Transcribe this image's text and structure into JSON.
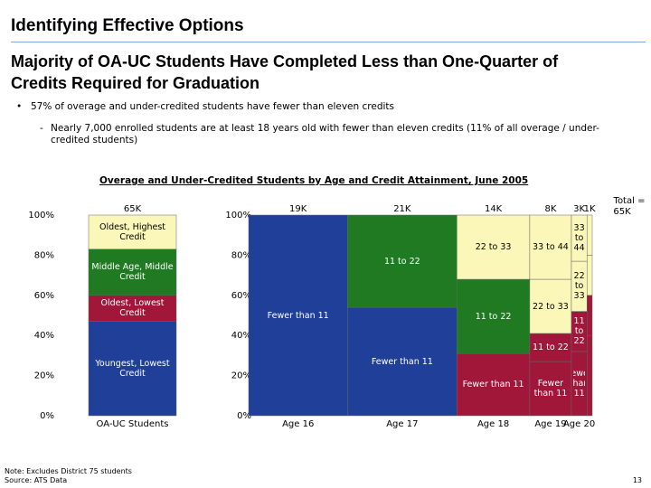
{
  "header": {
    "title": "Identifying Effective Options"
  },
  "heading": "Majority of OA-UC Students Have Completed Less than One-Quarter of Credits Required for Graduation",
  "bullets": [
    {
      "text": "57% of overage and under-credited students have fewer than eleven credits",
      "subs": [
        "Nearly 7,000 enrolled students are at least 18 years old with fewer than eleven credits (11% of all overage / under-credited students)"
      ]
    }
  ],
  "figure_title": "Overage and Under-Credited Students by Age and Credit Attainment, June 2005",
  "chart_data": [
    {
      "type": "stacked-bar",
      "categories": [
        "OA-UC Students"
      ],
      "widths": [
        65
      ],
      "width_labels": [
        "65K"
      ],
      "series": [
        {
          "name": "Youngest, Lowest Credit",
          "color": "#1f3f99",
          "values": [
            47
          ]
        },
        {
          "name": "Oldest, Lowest Credit",
          "color": "#a0173a",
          "values": [
            13
          ]
        },
        {
          "name": "Middle Age, Middle Credit",
          "color": "#1f7a22",
          "values": [
            23
          ]
        },
        {
          "name": "Oldest, Highest Credit",
          "color": "#fbf7b8",
          "values": [
            17
          ]
        }
      ],
      "ylim": [
        0,
        100
      ],
      "yticks": [
        {
          "value": 0,
          "label": "0%"
        },
        {
          "value": 20,
          "label": "20%"
        },
        {
          "value": 40,
          "label": "40%"
        },
        {
          "value": 60,
          "label": "60%"
        },
        {
          "value": 80,
          "label": "80%"
        },
        {
          "value": 100,
          "label": "100%"
        }
      ]
    },
    {
      "type": "mekko",
      "categories": [
        "Age 16",
        "Age 17",
        "Age 18",
        "Age 19",
        "Age 20",
        null
      ],
      "widths": [
        19,
        21,
        14,
        8,
        3,
        1
      ],
      "width_labels": [
        "19K",
        "21K",
        "14K",
        "8K",
        "3K",
        "1K"
      ],
      "total_prefix": "Total =",
      "total": 65,
      "total_label": "65K",
      "series": [
        {
          "name": "Fewer than 11",
          "colors": [
            "#1f3f99",
            "#1f3f99",
            "#a0173a",
            "#a0173a",
            "#a0173a",
            "#a0173a"
          ],
          "values": [
            100,
            54,
            31,
            27,
            32,
            40
          ]
        },
        {
          "name": "11 to 22",
          "colors": [
            "#1f7a22",
            "#1f7a22",
            "#1f7a22",
            "#a0173a",
            "#a0173a",
            "#a0173a"
          ],
          "values": [
            0,
            46,
            37,
            14,
            20,
            20
          ]
        },
        {
          "name": "22 to 33",
          "colors": [
            "#fbf7b8",
            "#fbf7b8",
            "#fbf7b8",
            "#fbf7b8",
            "#fbf7b8",
            "#fbf7b8"
          ],
          "values": [
            0,
            0,
            32,
            27,
            25,
            20
          ]
        },
        {
          "name": "33 to 44",
          "colors": [
            "#fbf7b8",
            "#fbf7b8",
            "#fbf7b8",
            "#fbf7b8",
            "#fbf7b8",
            "#fbf7b8"
          ],
          "values": [
            0,
            0,
            0,
            32,
            23,
            20
          ]
        }
      ],
      "ylim": [
        0,
        100
      ],
      "yticks": [
        {
          "value": 0,
          "label": "0%"
        },
        {
          "value": 20,
          "label": "20%"
        },
        {
          "value": 40,
          "label": "40%"
        },
        {
          "value": 60,
          "label": "60%"
        },
        {
          "value": 80,
          "label": "80%"
        },
        {
          "value": 100,
          "label": "100%"
        }
      ]
    }
  ],
  "footnotes": [
    "Note: Excludes District 75 students",
    "Source: ATS Data"
  ],
  "page_number": "13"
}
